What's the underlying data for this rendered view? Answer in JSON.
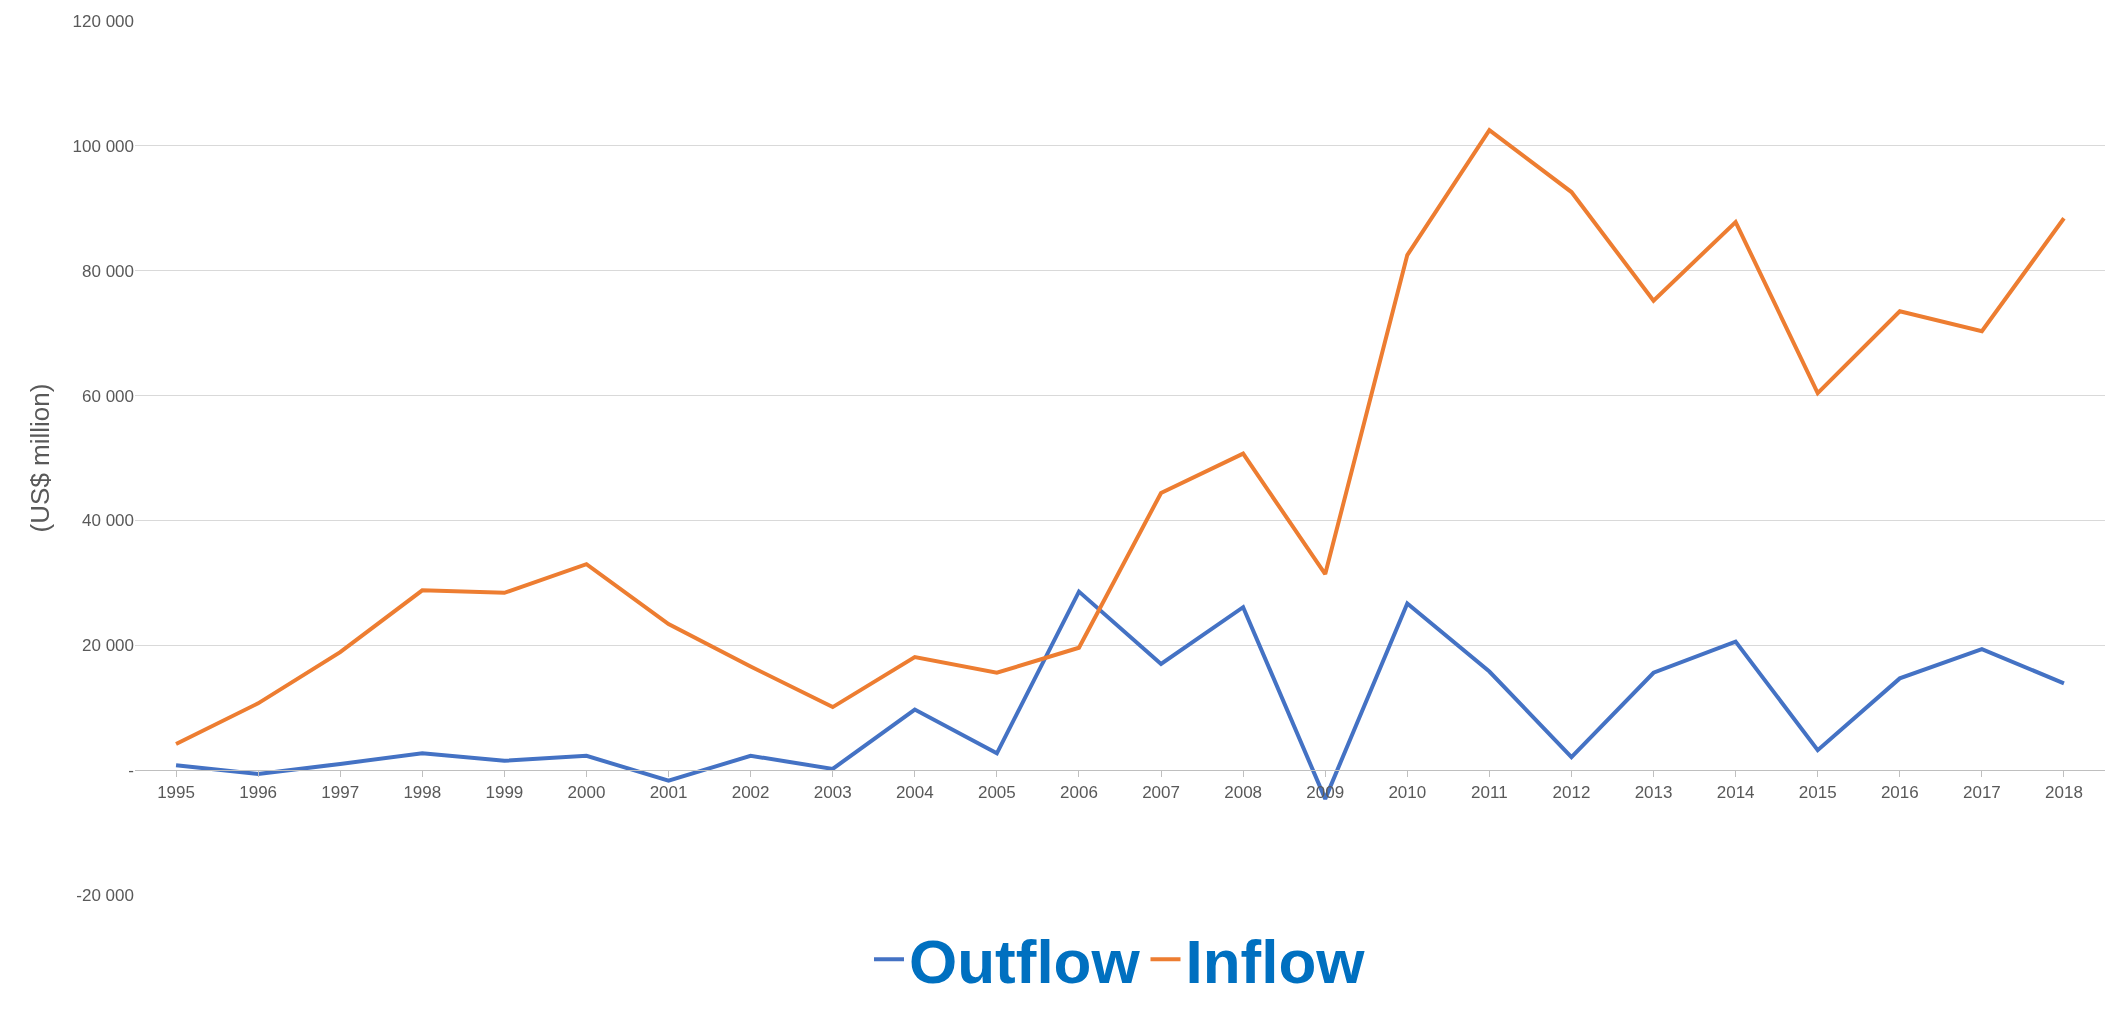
{
  "chart_data": {
    "type": "line",
    "ylabel": "(US$ million)",
    "categories": [
      "1995",
      "1996",
      "1997",
      "1998",
      "1999",
      "2000",
      "2001",
      "2002",
      "2003",
      "2004",
      "2005",
      "2006",
      "2007",
      "2008",
      "2009",
      "2010",
      "2011",
      "2012",
      "2013",
      "2014",
      "2015",
      "2016",
      "2017",
      "2018"
    ],
    "series": [
      {
        "name": "Outflow",
        "color": "#4472c4",
        "values": [
          800,
          -600,
          1000,
          2700,
          1500,
          2300,
          -1700,
          2300,
          200,
          9700,
          2700,
          28600,
          17000,
          26100,
          -4600,
          26700,
          15800,
          2100,
          15600,
          20600,
          3200,
          14700,
          19400,
          13900
        ]
      },
      {
        "name": "Inflow",
        "color": "#ed7d31",
        "values": [
          4200,
          10700,
          18900,
          28800,
          28400,
          33000,
          23400,
          16600,
          10100,
          18100,
          15600,
          19600,
          44400,
          50700,
          31400,
          82500,
          102500,
          92600,
          75200,
          87800,
          60400,
          73500,
          70300,
          88400
        ]
      }
    ],
    "ylim": [
      -20000,
      120000
    ],
    "yticks": [
      {
        "value": -20000,
        "label": "-20 000"
      },
      {
        "value": 0,
        "label": "-"
      },
      {
        "value": 20000,
        "label": "20 000"
      },
      {
        "value": 40000,
        "label": "40 000"
      },
      {
        "value": 60000,
        "label": "60 000"
      },
      {
        "value": 80000,
        "label": "80 000"
      },
      {
        "value": 100000,
        "label": "100 000"
      },
      {
        "value": 120000,
        "label": "120 000"
      }
    ],
    "grid": "y",
    "legend": "bottom",
    "marker": "none",
    "line_style": "solid"
  }
}
